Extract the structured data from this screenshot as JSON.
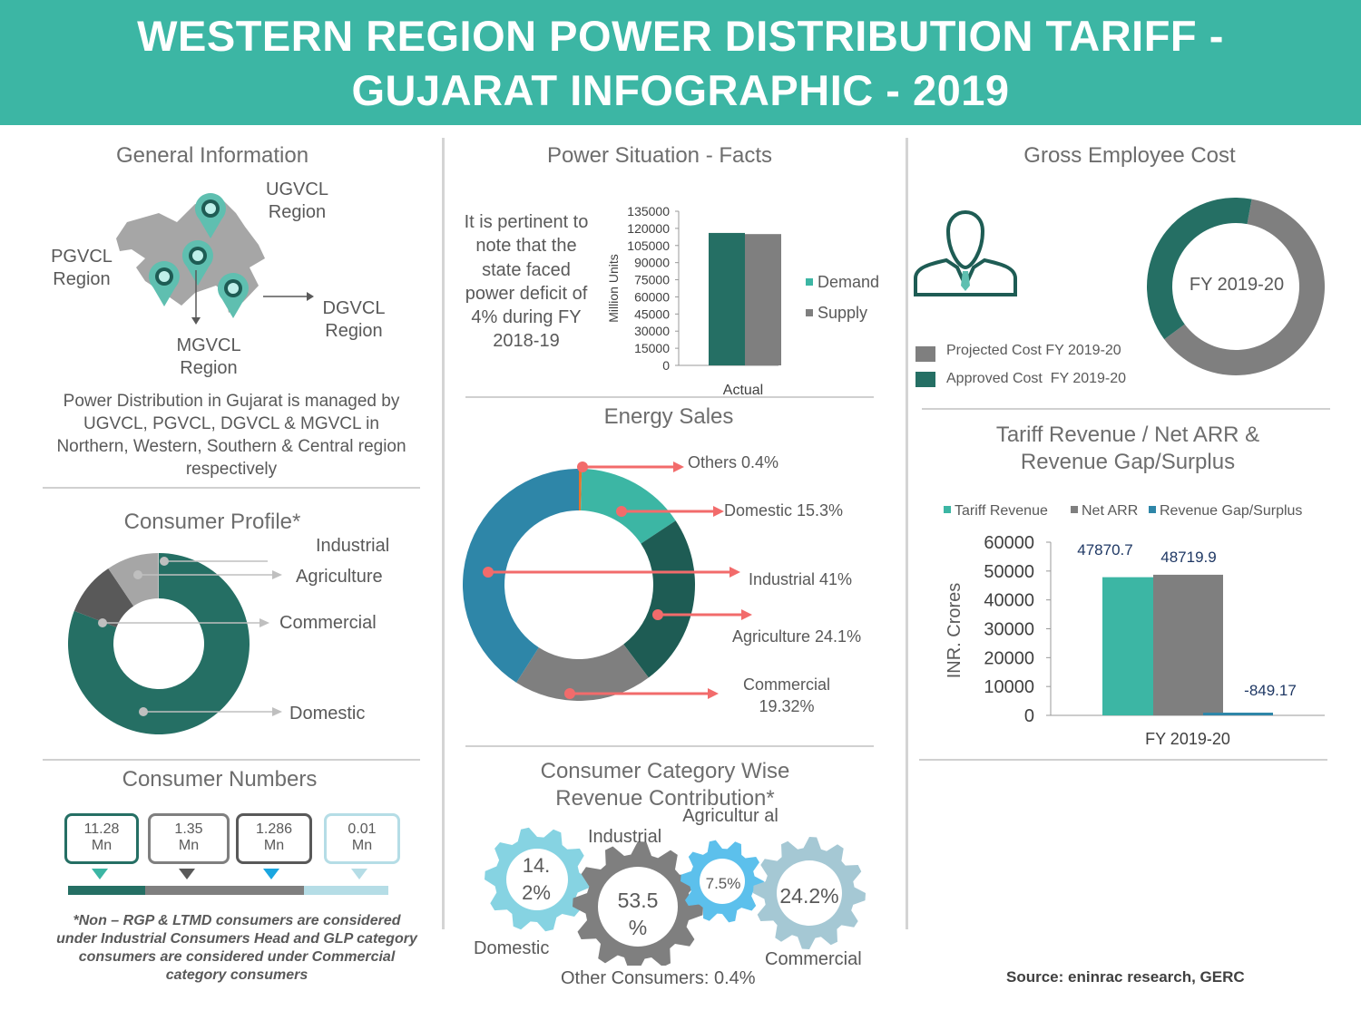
{
  "title": {
    "line1": "WESTERN REGION POWER DISTRIBUTION TARIFF -",
    "line2": "GUJARAT INFOGRAPHIC - 2019"
  },
  "general": {
    "heading": "General Information",
    "ugvcl": "UGVCL Region",
    "pgvcl": "PGVCL Region",
    "dgvcl": "DGVCL Region",
    "mgvcl": "MGVCL Region",
    "description": "Power Distribution in Gujarat is managed by UGVCL, PGVCL, DGVCL & MGVCL in Northern, Western, Southern & Central region respectively"
  },
  "consumer_profile": {
    "heading": "Consumer Profile*",
    "labels": {
      "industrial": "Industrial",
      "agriculture": "Agriculture",
      "commercial": "Commercial",
      "domestic": "Domestic"
    }
  },
  "consumer_numbers": {
    "heading": "Consumer Numbers",
    "items": [
      {
        "value": "11.28",
        "unit": "Mn",
        "color": "#256f64"
      },
      {
        "value": "1.35",
        "unit": "Mn",
        "color": "#7f7f7f"
      },
      {
        "value": "1.286",
        "unit": "Mn",
        "color": "#595959"
      },
      {
        "value": "0.01",
        "unit": "Mn",
        "color": "#b5dde6"
      }
    ],
    "note": "*Non – RGP & LTMD consumers are considered under Industrial Consumers Head and GLP category consumers are considered under Commercial category consumers"
  },
  "power_situation": {
    "heading": "Power Situation - Facts",
    "text": "It is pertinent to note that the state faced power deficit of 4% during FY 2018-19"
  },
  "energy_sales": {
    "heading": "Energy Sales"
  },
  "revenue_contribution": {
    "heading_line1": "Consumer Category Wise",
    "heading_line2": "Revenue Contribution*",
    "domestic_value": "14. 2%",
    "domestic_label": "Domestic",
    "industrial_value": "53.5 %",
    "industrial_label": "Industrial",
    "agricultural_value": "7.5%",
    "agricultural_label": "Agricultur al",
    "commercial_value": "24.2%",
    "commercial_label": "Commercial",
    "others": "Other Consumers: 0.4%"
  },
  "employee_cost": {
    "heading": "Gross Employee Cost",
    "donut_label": "FY 2019-20",
    "legend_projected": "Projected Cost FY 2019-20",
    "legend_approved": "Approved Cost  FY 2019-20"
  },
  "tariff": {
    "heading_line1": "Tariff Revenue / Net ARR &",
    "heading_line2": "Revenue Gap/Surplus"
  },
  "source": "Source: eninrac research, GERC",
  "colors": {
    "teal": "#3cb6a4",
    "dark_teal": "#256f64",
    "darker_teal": "#1e5c54",
    "gray": "#7f7f7f",
    "dark_gray": "#595959",
    "light_gray": "#a6a6a6",
    "blue": "#2e86a8",
    "light_blue": "#b5dde6",
    "red": "#f26b6b"
  },
  "chart_data": [
    {
      "type": "bar",
      "title": "",
      "categories": [
        "Actual"
      ],
      "series": [
        {
          "name": "Demand",
          "values": [
            116000
          ]
        },
        {
          "name": "Supply",
          "values": [
            115000
          ]
        }
      ],
      "ylabel": "Million Units",
      "ylim": [
        0,
        135000
      ],
      "yticks": [
        "135000",
        "120000",
        "105000",
        "90000",
        "75000",
        "60000",
        "45000",
        "30000",
        "15000",
        "0"
      ]
    },
    {
      "type": "pie",
      "title": "Energy Sales",
      "labels": [
        "Others 0.4%",
        "Domestic 15.3%",
        "Agriculture 24.1%",
        "Commercial 19.32%",
        "Industrial 41%"
      ],
      "values": [
        0.4,
        15.3,
        24.1,
        19.32,
        41
      ]
    },
    {
      "type": "pie",
      "title": "Consumer Profile*",
      "labels": [
        "Domestic",
        "Commercial",
        "Agriculture",
        "Industrial"
      ],
      "values": [
        80.9,
        9.7,
        9.3,
        0.1
      ]
    },
    {
      "type": "pie",
      "title": "Gross Employee Cost",
      "labels": [
        "Projected Cost FY 2019-20",
        "Approved Cost  FY 2019-20"
      ],
      "values": [
        62,
        38
      ]
    },
    {
      "type": "bar",
      "title": "",
      "categories": [
        "FY 2019-20"
      ],
      "series": [
        {
          "name": "Tariff Revenue",
          "values": [
            47870.7
          ],
          "label": "47870.7"
        },
        {
          "name": "Net ARR",
          "values": [
            48719.9
          ],
          "label": "48719.9"
        },
        {
          "name": "Revenue Gap/Surplus",
          "values": [
            -849.17
          ],
          "label": "-849.17"
        }
      ],
      "ylabel": "INR. Crores",
      "ylim": [
        0,
        60000
      ],
      "yticks": [
        "60000",
        "50000",
        "40000",
        "30000",
        "20000",
        "10000",
        "0"
      ]
    }
  ]
}
